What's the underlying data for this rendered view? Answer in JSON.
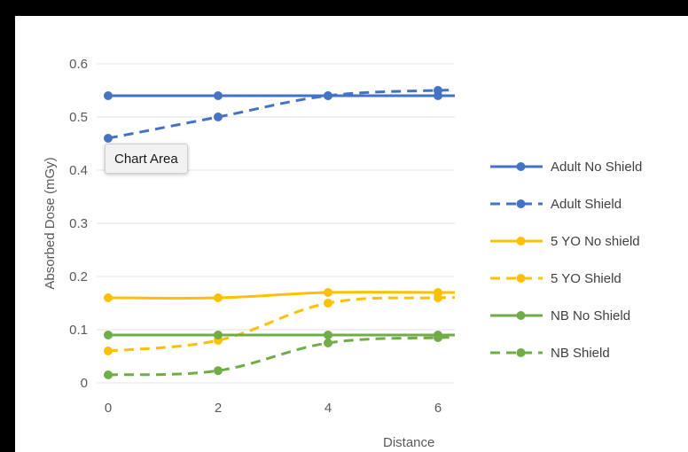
{
  "chart_data": {
    "type": "line",
    "ylabel": "Absorbed Dose (mGy)",
    "xlabel": "Distance",
    "ylim": [
      0,
      0.6
    ],
    "y_ticks": [
      "0",
      "0.1",
      "0.2",
      "0.3",
      "0.4",
      "0.5",
      "0.6"
    ],
    "x_ticks": [
      "0",
      "2",
      "4",
      "6"
    ],
    "x": [
      0,
      2,
      4,
      6
    ],
    "grid": "horizontal",
    "legend_position": "right",
    "series": [
      {
        "name": "Adult No Shield",
        "values": [
          0.54,
          0.54,
          0.54,
          0.54
        ],
        "color": "#4472C4",
        "dashed": false
      },
      {
        "name": "Adult Shield",
        "values": [
          0.46,
          0.5,
          0.54,
          0.55
        ],
        "color": "#4472C4",
        "dashed": true
      },
      {
        "name": "5 YO No shield",
        "values": [
          0.16,
          0.16,
          0.17,
          0.17
        ],
        "color": "#FFC000",
        "dashed": false
      },
      {
        "name": "5 YO Shield",
        "values": [
          0.06,
          0.08,
          0.15,
          0.16
        ],
        "color": "#FFC000",
        "dashed": true
      },
      {
        "name": "NB No Shield",
        "values": [
          0.09,
          0.09,
          0.09,
          0.09
        ],
        "color": "#70AD47",
        "dashed": false
      },
      {
        "name": "NB Shield",
        "values": [
          0.015,
          0.023,
          0.075,
          0.085
        ],
        "color": "#70AD47",
        "dashed": true
      }
    ]
  },
  "tooltip": {
    "text": "Chart Area"
  }
}
